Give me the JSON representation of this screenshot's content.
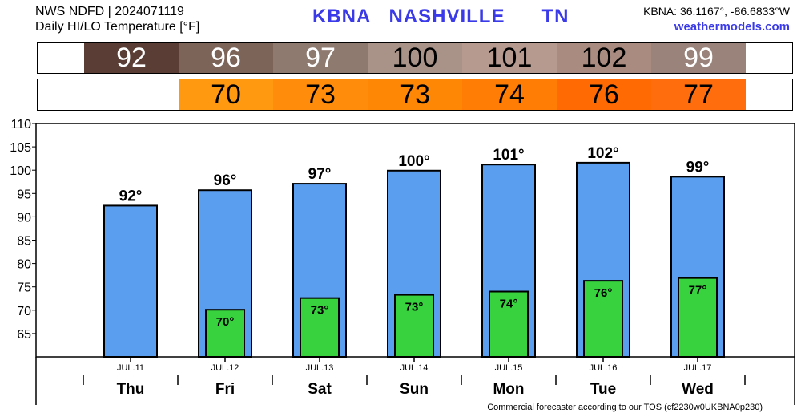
{
  "header": {
    "source_line": "NWS NDFD | 2024071119",
    "subtitle": "Daily HI/LO Temperature [°F]",
    "station_id": "KBNA",
    "station_city": "NASHVILLE",
    "station_state": "TN",
    "coords": "KBNA: 36.1167°, -86.6833°W",
    "site": "weathermodels.com"
  },
  "footer": {
    "note": "Commercial forecaster according to our TOS (cf2230w0UKBNA0p230)"
  },
  "colors": {
    "hi_bar": "#5a9ef0",
    "lo_bar": "#38d23f",
    "hi_strip": [
      "#5a3d34",
      "#7c6459",
      "#8f7a70",
      "#a99389",
      "#b69a90",
      "#a98b80",
      "#9a837a"
    ],
    "hi_strip_text": [
      "#ffffff",
      "#ffffff",
      "#ffffff",
      "#000000",
      "#000000",
      "#000000",
      "#ffffff"
    ],
    "lo_strip": [
      "#ff9910",
      "#ff8c0a",
      "#ff8706",
      "#ff7d04",
      "#ff6b02",
      "#ff6d0c"
    ]
  },
  "chart_data": {
    "type": "bar",
    "categories": [
      "Thu",
      "Fri",
      "Sat",
      "Sun",
      "Mon",
      "Tue",
      "Wed"
    ],
    "dates": [
      "JUL.11",
      "JUL.12",
      "JUL.13",
      "JUL.14",
      "JUL.15",
      "JUL.16",
      "JUL.17"
    ],
    "series": [
      {
        "values": [
          92.4,
          95.7,
          97.1,
          99.9,
          101.2,
          101.6,
          98.6
        ],
        "labels": [
          "92°",
          "96°",
          "97°",
          "100°",
          "101°",
          "102°",
          "99°"
        ]
      },
      {
        "values": [
          null,
          70.1,
          72.6,
          73.3,
          74.0,
          76.3,
          76.9
        ],
        "labels": [
          "",
          "70°",
          "73°",
          "73°",
          "74°",
          "76°",
          "77°"
        ]
      }
    ],
    "strip_hi": [
      "92",
      "96",
      "97",
      "100",
      "101",
      "102",
      "99"
    ],
    "strip_lo": [
      "",
      "70",
      "73",
      "73",
      "74",
      "76",
      "77"
    ],
    "yticks": [
      65,
      70,
      75,
      80,
      85,
      90,
      95,
      100,
      105,
      110
    ],
    "ylim": [
      60,
      110
    ],
    "grid": false
  }
}
